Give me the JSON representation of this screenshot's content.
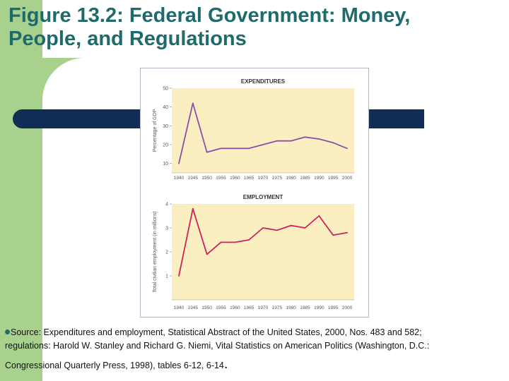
{
  "slide": {
    "title_line1": "Figure 13.2: Federal Government: Money,",
    "title_line2": "People, and Regulations",
    "source_line1": "Source: Expenditures and employment, Statistical Abstract of the United States, 2000, Nos. 483 and 582;",
    "source_line2": "regulations: Harold W. Stanley and Richard G. Niemi, Vital Statistics on American Politics (Washington, D.C.:",
    "source_line3": "Congressional Quarterly Press, 1998), tables 6-12, 6-14",
    "source_end": "."
  },
  "colors": {
    "expenditures_line": "#8b4fa8",
    "employment_line": "#d0205c",
    "plot_bg": "#fbefc2"
  },
  "chart_data": [
    {
      "type": "line",
      "title": "EXPENDITURES",
      "xlabel": "",
      "ylabel": "Percentage of GDP",
      "x": [
        1940,
        1945,
        1950,
        1955,
        1960,
        1965,
        1970,
        1975,
        1980,
        1985,
        1990,
        1995,
        2000
      ],
      "x_tick_labels": [
        "1940",
        "1945",
        "1950",
        "1955",
        "1960",
        "1965",
        "1970",
        "1975",
        "1980",
        "1985",
        "1990",
        "1995",
        "2000"
      ],
      "y_ticks": [
        10,
        20,
        30,
        40,
        50
      ],
      "y_tick_labels": [
        "10",
        "20",
        "30",
        "40",
        "50"
      ],
      "ylim": [
        5,
        50
      ],
      "series": [
        {
          "name": "Expenditures",
          "values": [
            10,
            42,
            16,
            18,
            18,
            18,
            20,
            22,
            22,
            24,
            23,
            21,
            18
          ]
        }
      ]
    },
    {
      "type": "line",
      "title": "EMPLOYMENT",
      "xlabel": "",
      "ylabel": "Total civilian employment (in millions)",
      "x": [
        1940,
        1945,
        1950,
        1955,
        1960,
        1965,
        1970,
        1975,
        1980,
        1985,
        1990,
        1995,
        2000
      ],
      "x_tick_labels": [
        "1940",
        "1945",
        "1950",
        "1955",
        "1960",
        "1965",
        "1970",
        "1975",
        "1980",
        "1985",
        "1990",
        "1995",
        "2000"
      ],
      "y_ticks": [
        1,
        2,
        3,
        4
      ],
      "y_tick_labels": [
        "1",
        "2",
        "3",
        "4"
      ],
      "ylim": [
        0,
        4
      ],
      "series": [
        {
          "name": "Employment",
          "values": [
            1.0,
            3.8,
            1.9,
            2.4,
            2.4,
            2.5,
            3.0,
            2.9,
            3.1,
            3.0,
            3.5,
            2.7,
            2.8
          ]
        }
      ]
    }
  ]
}
